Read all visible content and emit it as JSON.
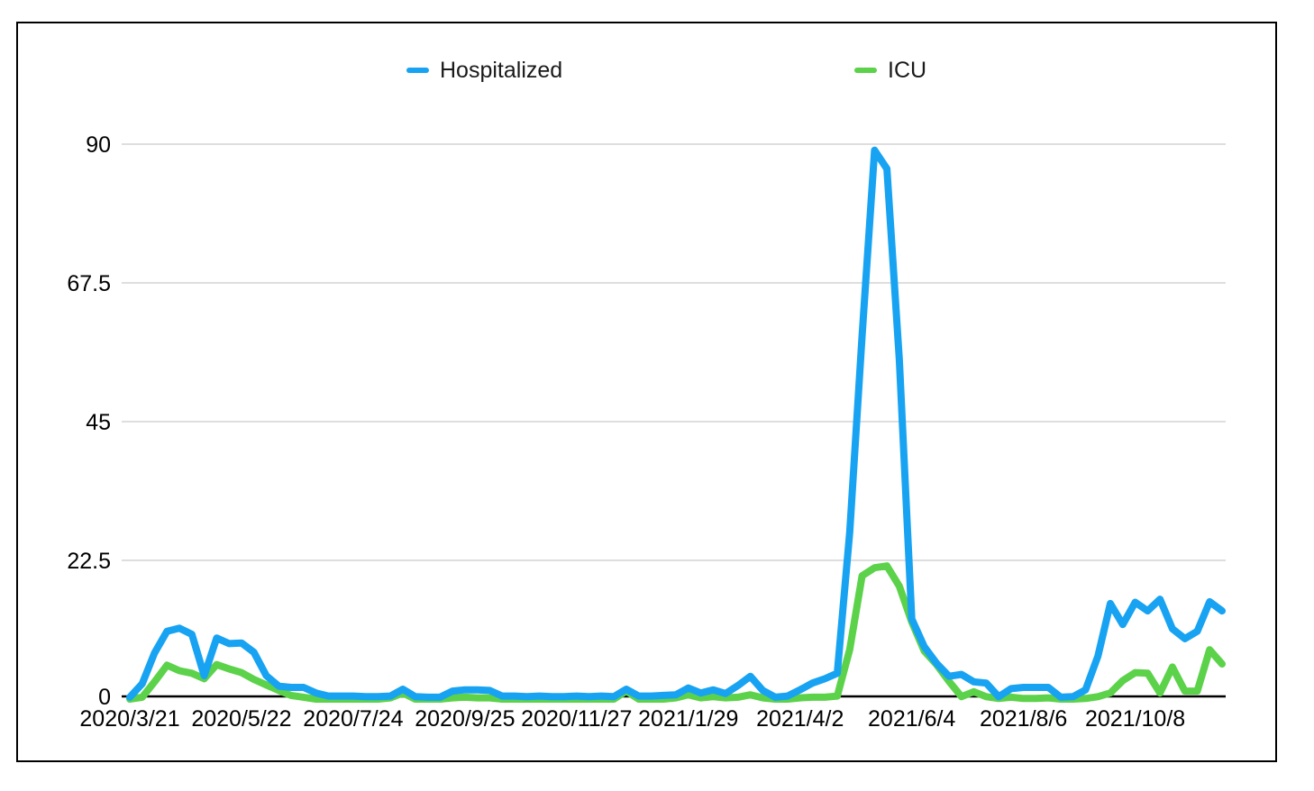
{
  "legend": {
    "items": [
      {
        "label": "Hospitalized",
        "color": "#18A3F2"
      },
      {
        "label": "ICU",
        "color": "#5CD24A"
      }
    ]
  },
  "chart_data": {
    "type": "line",
    "title": "",
    "xlabel": "",
    "ylabel": "",
    "n_points": 89,
    "x_tick_every": 9,
    "x_tick_labels": [
      "2020/3/21",
      "2020/5/22",
      "2020/7/24",
      "2020/9/25",
      "2020/11/27",
      "2021/1/29",
      "2021/4/2",
      "2021/6/4",
      "2021/8/6",
      "2021/10/8"
    ],
    "y_ticks": [
      0,
      22.5,
      45,
      67.5,
      90
    ],
    "y_tick_labels": [
      "0",
      "22.5",
      "45",
      "67.5",
      "90"
    ],
    "ylim": [
      0,
      90
    ],
    "grid": "horizontal",
    "gridline_color": "#c9c9c9",
    "axis_color": "#000000",
    "legend_position": "top",
    "series": [
      {
        "name": "Hospitalized",
        "color": "#18A3F2",
        "values": [
          0.3,
          2.5,
          7.5,
          11,
          11.5,
          10.5,
          3.8,
          9.9,
          9.0,
          9.1,
          7.6,
          3.8,
          2.1,
          1.9,
          1.9,
          1.0,
          0.5,
          0.5,
          0.5,
          0.4,
          0.4,
          0.5,
          1.6,
          0.4,
          0.3,
          0.3,
          1.3,
          1.5,
          1.5,
          1.4,
          0.5,
          0.5,
          0.4,
          0.5,
          0.4,
          0.4,
          0.5,
          0.4,
          0.5,
          0.4,
          1.6,
          0.5,
          0.5,
          0.6,
          0.7,
          1.8,
          1.0,
          1.5,
          0.9,
          2.2,
          3.7,
          1.4,
          0.3,
          0.5,
          1.5,
          2.6,
          3.3,
          4.2,
          27,
          59,
          89,
          86,
          55,
          13,
          8.5,
          5.8,
          3.7,
          4.0,
          2.8,
          2.6,
          0.4,
          1.7,
          1.9,
          1.9,
          1.9,
          0.3,
          0.4,
          1.5,
          7,
          15.5,
          12.1,
          15.7,
          14.3,
          16.2,
          11.4,
          9.8,
          11,
          15.8,
          14.3
        ]
      },
      {
        "name": "ICU",
        "color": "#5CD24A",
        "values": [
          0,
          0.3,
          2.8,
          5.5,
          4.6,
          4.2,
          3.3,
          5.6,
          4.9,
          4.3,
          3.2,
          2.3,
          1.4,
          0.6,
          0.3,
          0,
          0,
          0,
          0,
          0,
          0,
          0.2,
          1.0,
          0,
          0,
          0,
          0.2,
          0.3,
          0.2,
          0.2,
          0,
          0,
          0,
          0,
          0,
          0,
          0,
          0,
          0,
          0,
          1.3,
          0,
          0,
          0,
          0.2,
          0.7,
          0.2,
          0.4,
          0.2,
          0.3,
          0.7,
          0.2,
          0,
          0,
          0.2,
          0.3,
          0.3,
          0.5,
          8,
          20,
          21.3,
          21.6,
          18.3,
          12.5,
          7.8,
          5.6,
          2.9,
          0.4,
          1.2,
          0.4,
          0.1,
          0.3,
          0.1,
          0.1,
          0.2,
          0,
          0,
          0.1,
          0.4,
          1.0,
          3.0,
          4.3,
          4.2,
          1.0,
          5.2,
          1.3,
          1.3,
          8.0,
          5.7
        ]
      }
    ]
  }
}
